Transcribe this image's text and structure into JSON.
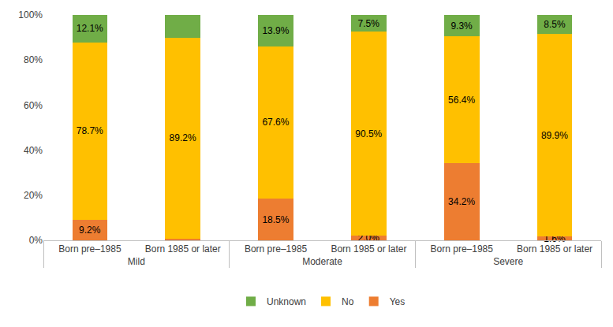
{
  "chart_data": {
    "type": "bar",
    "stacked": true,
    "categories": [
      [
        "Mild",
        "Born pre–1985"
      ],
      [
        "Mild",
        "Born 1985 or later"
      ],
      [
        "Moderate",
        "Born pre–1985"
      ],
      [
        "Moderate",
        "Born 1985 or later"
      ],
      [
        "Severe",
        "Born pre–1985"
      ],
      [
        "Severe",
        "Born 1985 or later"
      ]
    ],
    "series": [
      {
        "name": "Yes",
        "color": "#ED7D31",
        "values": [
          9.2,
          0.8,
          18.5,
          2.0,
          34.2,
          1.6
        ],
        "value_labels": [
          "9.2%",
          null,
          "18.5%",
          "2.0%",
          "34.2%",
          "1.6%"
        ]
      },
      {
        "name": "No",
        "color": "#FFC000",
        "values": [
          78.7,
          89.2,
          67.6,
          90.5,
          56.4,
          89.9
        ],
        "value_labels": [
          "78.7%",
          "89.2%",
          "67.6%",
          "90.5%",
          "56.4%",
          "89.9%"
        ]
      },
      {
        "name": "Unknown",
        "color": "#70AD47",
        "values": [
          12.1,
          10.0,
          13.9,
          7.5,
          9.3,
          8.5
        ],
        "value_labels": [
          "12.1%",
          null,
          "13.9%",
          "7.5%",
          "9.3%",
          "8.5%"
        ]
      }
    ],
    "ylim": [
      0,
      100
    ],
    "yticks": [
      {
        "value": 0,
        "label": "0%"
      },
      {
        "value": 20,
        "label": "20%"
      },
      {
        "value": 40,
        "label": "40%"
      },
      {
        "value": 60,
        "label": "60%"
      },
      {
        "value": 80,
        "label": "80%"
      },
      {
        "value": 100,
        "label": "100%"
      }
    ],
    "grid": false,
    "legend": "bottom",
    "data_labels": true
  }
}
